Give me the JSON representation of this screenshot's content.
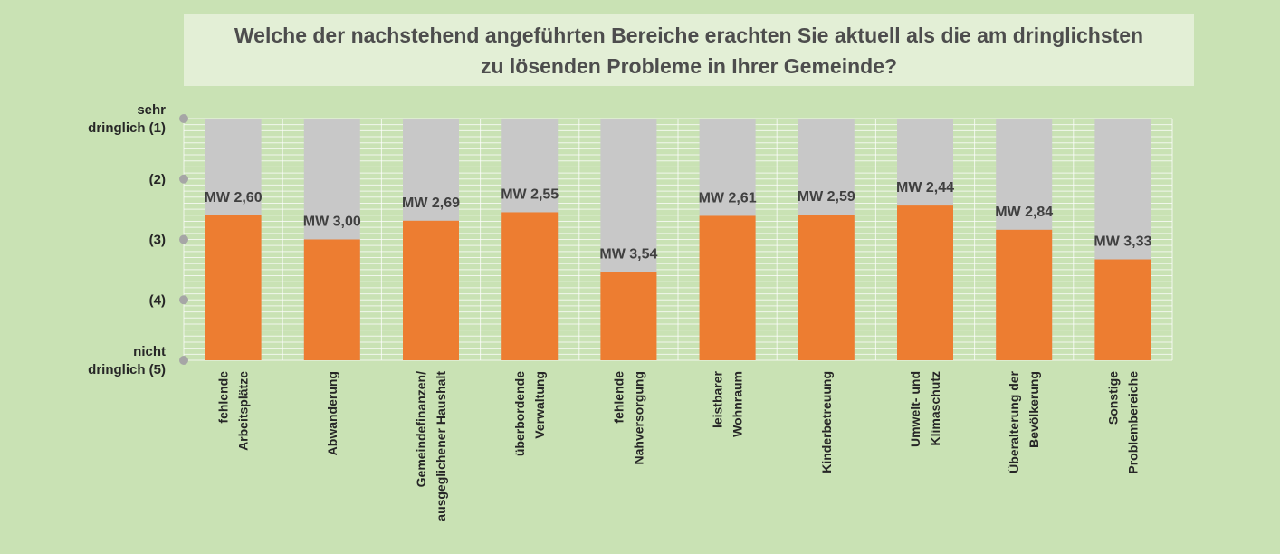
{
  "chart_data": {
    "type": "bar",
    "title": [
      "Welche der nachstehend angeführten Bereiche erachten Sie aktuell als die am dringlichsten",
      "zu lösenden Probleme in Ihrer Gemeinde?"
    ],
    "y_scale": {
      "min": 1,
      "max": 5,
      "inverted": true
    },
    "y_ticks": [
      {
        "value": 1,
        "lines": [
          "sehr",
          "dringlich (1)"
        ]
      },
      {
        "value": 2,
        "lines": [
          "(2)"
        ]
      },
      {
        "value": 3,
        "lines": [
          "(3)"
        ]
      },
      {
        "value": 4,
        "lines": [
          "(4)"
        ]
      },
      {
        "value": 5,
        "lines": [
          "nicht",
          "dringlich (5)"
        ]
      }
    ],
    "categories": [
      {
        "lines": [
          "fehlende",
          "Arbeitsplätze"
        ],
        "value": 2.6,
        "label": "MW 2,60"
      },
      {
        "lines": [
          "Abwanderung"
        ],
        "value": 3.0,
        "label": "MW 3,00"
      },
      {
        "lines": [
          "Gemeindefinanzen/",
          "ausgeglichener Haushalt"
        ],
        "value": 2.69,
        "label": "MW 2,69"
      },
      {
        "lines": [
          "überbordende",
          "Verwaltung"
        ],
        "value": 2.55,
        "label": "MW 2,55"
      },
      {
        "lines": [
          "fehlende",
          "Nahversorgung"
        ],
        "value": 3.54,
        "label": "MW 3,54"
      },
      {
        "lines": [
          "leistbarer",
          "Wohnraum"
        ],
        "value": 2.61,
        "label": "MW 2,61"
      },
      {
        "lines": [
          "Kinderbetreuung"
        ],
        "value": 2.59,
        "label": "MW 2,59"
      },
      {
        "lines": [
          "Umwelt- und",
          "Klimaschutz"
        ],
        "value": 2.44,
        "label": "MW 2,44"
      },
      {
        "lines": [
          "Überalterung der",
          "Bevölkerung"
        ],
        "value": 2.84,
        "label": "MW 2,84"
      },
      {
        "lines": [
          "Sonstige",
          "Problembereiche"
        ],
        "value": 3.33,
        "label": "MW 3,33"
      }
    ],
    "colors": {
      "bar": "#ed7d31",
      "bar_background": "#c8c8c8",
      "grid": "#ffffff",
      "axis_dot": "#a6a6a6"
    }
  }
}
